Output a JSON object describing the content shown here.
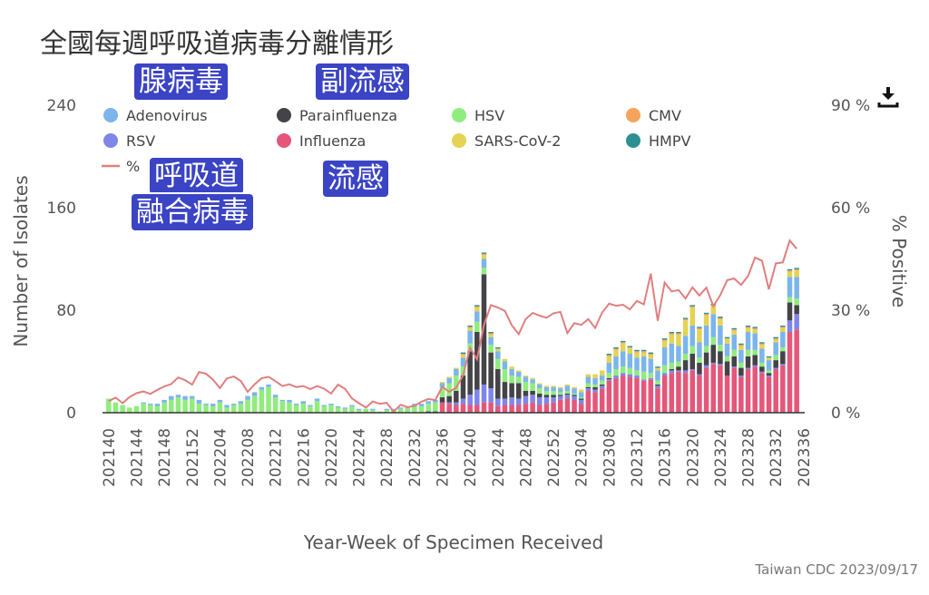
{
  "title": "全國每週呼吸道病毒分離情形",
  "credit": "Taiwan CDC 2023/09/17",
  "download_icon": "download-icon",
  "annotations": [
    "腺病毒",
    "副流感",
    "呼吸道",
    "融合病毒",
    "流感"
  ],
  "chart_data": {
    "type": "bar",
    "stacked": true,
    "xlabel": "Year-Week of Specimen Received",
    "ylabel": "Number of Isolates",
    "y2label": "% Positive",
    "ylim": [
      0,
      240
    ],
    "y2lim": [
      0,
      90
    ],
    "yticks": [
      "0",
      "80",
      "160",
      "240"
    ],
    "y2ticks": [
      "0 %",
      "30 %",
      "60 %",
      "90 %"
    ],
    "xticks": [
      "202140",
      "202144",
      "202148",
      "202152",
      "202204",
      "202208",
      "202212",
      "202216",
      "202220",
      "202224",
      "202228",
      "202232",
      "202236",
      "202240",
      "202244",
      "202248",
      "202252",
      "202304",
      "202308",
      "202312",
      "202316",
      "202320",
      "202324",
      "202328",
      "202332",
      "202336"
    ],
    "legend": [
      {
        "name": "Adenovirus",
        "color": "#7cb5ec"
      },
      {
        "name": "Parainfluenza",
        "color": "#434348"
      },
      {
        "name": "HSV",
        "color": "#90ed7d"
      },
      {
        "name": "CMV",
        "color": "#f7a35c"
      },
      {
        "name": "RSV",
        "color": "#8085e9"
      },
      {
        "name": "Influenza",
        "color": "#e4577a"
      },
      {
        "name": "SARS-CoV-2",
        "color": "#e4d354"
      },
      {
        "name": "HMPV",
        "color": "#2b908f"
      },
      {
        "name": "%",
        "color": "#e07f7f"
      }
    ],
    "weeks": [
      "202140",
      "202141",
      "202142",
      "202143",
      "202144",
      "202145",
      "202146",
      "202147",
      "202148",
      "202149",
      "202150",
      "202151",
      "202152",
      "202201",
      "202202",
      "202203",
      "202204",
      "202205",
      "202206",
      "202207",
      "202208",
      "202209",
      "202210",
      "202211",
      "202212",
      "202213",
      "202214",
      "202215",
      "202216",
      "202217",
      "202218",
      "202219",
      "202220",
      "202221",
      "202222",
      "202223",
      "202224",
      "202225",
      "202226",
      "202227",
      "202228",
      "202229",
      "202230",
      "202231",
      "202232",
      "202233",
      "202234",
      "202235",
      "202236",
      "202237",
      "202238",
      "202239",
      "202240",
      "202241",
      "202242",
      "202243",
      "202244",
      "202245",
      "202246",
      "202247",
      "202248",
      "202249",
      "202250",
      "202251",
      "202252",
      "202301",
      "202302",
      "202303",
      "202304",
      "202305",
      "202306",
      "202307",
      "202308",
      "202309",
      "202310",
      "202311",
      "202312",
      "202313",
      "202314",
      "202315",
      "202316",
      "202317",
      "202318",
      "202319",
      "202320",
      "202321",
      "202322",
      "202323",
      "202324",
      "202325",
      "202326",
      "202327",
      "202328",
      "202329",
      "202330",
      "202331",
      "202332",
      "202333",
      "202334",
      "202335"
    ],
    "series": [
      {
        "name": "Influenza",
        "values": [
          0,
          0,
          0,
          0,
          0,
          0,
          0,
          0,
          0,
          0,
          0,
          0,
          0,
          0,
          0,
          0,
          0,
          0,
          0,
          0,
          0,
          0,
          0,
          0,
          0,
          0,
          0,
          0,
          0,
          0,
          0,
          0,
          0,
          0,
          0,
          0,
          0,
          0,
          0,
          0,
          0,
          0,
          0,
          0,
          0,
          0,
          0,
          0,
          8,
          7,
          6,
          7,
          6,
          6,
          8,
          8,
          5,
          6,
          6,
          6,
          7,
          8,
          6,
          7,
          8,
          10,
          11,
          10,
          7,
          17,
          16,
          19,
          25,
          27,
          29,
          28,
          27,
          25,
          26,
          19,
          29,
          31,
          32,
          31,
          33,
          29,
          35,
          38,
          37,
          29,
          35,
          28,
          34,
          36,
          31,
          28,
          34,
          37,
          63,
          65
        ]
      },
      {
        "name": "RSV",
        "values": [
          0,
          0,
          0,
          0,
          0,
          0,
          0,
          0,
          0,
          0,
          0,
          0,
          0,
          0,
          0,
          0,
          0,
          0,
          0,
          0,
          0,
          0,
          0,
          0,
          0,
          0,
          0,
          0,
          0,
          0,
          0,
          0,
          0,
          0,
          0,
          0,
          0,
          0,
          0,
          0,
          0,
          0,
          0,
          0,
          0,
          0,
          0,
          0,
          0,
          1,
          2,
          4,
          8,
          12,
          14,
          11,
          6,
          5,
          6,
          5,
          6,
          6,
          6,
          5,
          4,
          3,
          3,
          3,
          3,
          2,
          2,
          2,
          1,
          2,
          2,
          2,
          2,
          1,
          1,
          2,
          2,
          2,
          1,
          2,
          1,
          1,
          2,
          1,
          1,
          0,
          1,
          1,
          1,
          1,
          1,
          1,
          1,
          1,
          9,
          12
        ]
      },
      {
        "name": "Parainfluenza",
        "values": [
          0,
          0,
          0,
          0,
          0,
          0,
          0,
          0,
          0,
          0,
          0,
          0,
          0,
          0,
          0,
          0,
          0,
          0,
          0,
          0,
          0,
          0,
          0,
          0,
          0,
          0,
          0,
          0,
          0,
          0,
          0,
          0,
          0,
          0,
          0,
          0,
          0,
          0,
          0,
          0,
          0,
          0,
          0,
          0,
          0,
          0,
          1,
          1,
          4,
          5,
          9,
          18,
          34,
          45,
          86,
          28,
          23,
          13,
          11,
          12,
          4,
          3,
          3,
          2,
          2,
          1,
          1,
          1,
          1,
          1,
          2,
          1,
          1,
          0,
          0,
          0,
          0,
          0,
          0,
          1,
          0,
          1,
          3,
          8,
          12,
          9,
          10,
          14,
          10,
          11,
          8,
          6,
          9,
          8,
          4,
          2,
          6,
          10,
          14,
          7
        ]
      },
      {
        "name": "HSV",
        "values": [
          11,
          8,
          6,
          4,
          5,
          7,
          6,
          5,
          8,
          10,
          12,
          10,
          11,
          7,
          6,
          5,
          8,
          4,
          6,
          7,
          10,
          13,
          18,
          20,
          12,
          9,
          8,
          6,
          7,
          5,
          9,
          5,
          6,
          4,
          3,
          5,
          2,
          3,
          2,
          1,
          2,
          2,
          3,
          4,
          5,
          5,
          6,
          7,
          8,
          10,
          12,
          7,
          6,
          8,
          5,
          6,
          8,
          10,
          6,
          5,
          7,
          6,
          4,
          3,
          3,
          2,
          2,
          1,
          1,
          3,
          2,
          3,
          4,
          5,
          5,
          5,
          4,
          6,
          4,
          3,
          6,
          5,
          4,
          5,
          6,
          4,
          5,
          6,
          5,
          4,
          5,
          4,
          5,
          4,
          3,
          2,
          4,
          3,
          4,
          5
        ]
      },
      {
        "name": "Adenovirus",
        "values": [
          0,
          0,
          0,
          0,
          0,
          1,
          1,
          2,
          2,
          3,
          2,
          3,
          2,
          3,
          1,
          2,
          2,
          2,
          1,
          2,
          3,
          3,
          2,
          2,
          2,
          1,
          2,
          1,
          2,
          1,
          2,
          1,
          1,
          1,
          1,
          1,
          1,
          0,
          1,
          0,
          1,
          1,
          1,
          1,
          2,
          2,
          2,
          2,
          3,
          4,
          5,
          7,
          10,
          8,
          7,
          6,
          6,
          6,
          5,
          4,
          4,
          3,
          3,
          3,
          3,
          3,
          4,
          4,
          4,
          5,
          5,
          4,
          8,
          10,
          12,
          11,
          10,
          12,
          11,
          8,
          14,
          15,
          12,
          14,
          16,
          12,
          16,
          18,
          15,
          10,
          12,
          10,
          14,
          13,
          11,
          8,
          10,
          12,
          16,
          17
        ]
      },
      {
        "name": "SARS-CoV-2",
        "values": [
          0,
          0,
          0,
          0,
          0,
          0,
          0,
          0,
          0,
          0,
          0,
          0,
          0,
          0,
          0,
          0,
          0,
          0,
          0,
          0,
          0,
          0,
          0,
          0,
          0,
          0,
          0,
          0,
          0,
          0,
          0,
          0,
          0,
          0,
          0,
          0,
          0,
          0,
          0,
          0,
          0,
          0,
          0,
          0,
          0,
          0,
          0,
          0,
          1,
          1,
          1,
          2,
          2,
          3,
          3,
          2,
          2,
          2,
          2,
          1,
          1,
          1,
          1,
          1,
          1,
          1,
          1,
          1,
          2,
          2,
          3,
          4,
          5,
          5,
          6,
          5,
          4,
          3,
          3,
          2,
          5,
          7,
          9,
          12,
          14,
          10,
          8,
          6,
          5,
          4,
          3,
          3,
          3,
          3,
          3,
          2,
          2,
          3,
          4,
          5
        ]
      },
      {
        "name": "CMV",
        "values": [
          0,
          0,
          0,
          0,
          0,
          0,
          0,
          0,
          0,
          0,
          0,
          0,
          0,
          0,
          0,
          0,
          0,
          0,
          0,
          0,
          0,
          0,
          0,
          0,
          0,
          0,
          0,
          0,
          0,
          0,
          0,
          0,
          0,
          0,
          0,
          0,
          0,
          0,
          0,
          0,
          0,
          0,
          0,
          0,
          0,
          0,
          0,
          0,
          0,
          0,
          0,
          1,
          1,
          1,
          1,
          1,
          0,
          0,
          0,
          0,
          0,
          0,
          0,
          0,
          0,
          0,
          0,
          0,
          0,
          0,
          0,
          0,
          1,
          1,
          1,
          0,
          1,
          1,
          1,
          0,
          1,
          1,
          1,
          1,
          1,
          1,
          1,
          1,
          1,
          0,
          1,
          1,
          1,
          1,
          1,
          0,
          1,
          1,
          1,
          1
        ]
      },
      {
        "name": "HMPV",
        "values": [
          0,
          0,
          0,
          0,
          0,
          0,
          0,
          0,
          0,
          0,
          0,
          0,
          0,
          0,
          0,
          0,
          0,
          0,
          0,
          0,
          0,
          0,
          0,
          0,
          0,
          0,
          0,
          0,
          0,
          0,
          0,
          0,
          0,
          0,
          0,
          0,
          0,
          0,
          0,
          0,
          0,
          0,
          0,
          0,
          0,
          0,
          0,
          0,
          0,
          0,
          0,
          1,
          1,
          1,
          1,
          1,
          1,
          0,
          0,
          0,
          0,
          0,
          0,
          0,
          0,
          0,
          0,
          0,
          0,
          0,
          0,
          0,
          1,
          1,
          1,
          1,
          1,
          1,
          1,
          1,
          1,
          1,
          1,
          1,
          1,
          1,
          1,
          1,
          1,
          1,
          1,
          1,
          1,
          1,
          1,
          1,
          1,
          1,
          1,
          1
        ]
      }
    ],
    "percent_positive": [
      3.4,
      4.4,
      2.8,
      4.6,
      5.7,
      6.2,
      5.5,
      6.7,
      7.7,
      8.4,
      10.3,
      9.5,
      8.2,
      11.9,
      11.4,
      9.7,
      7.2,
      10.0,
      10.6,
      9.3,
      6.1,
      8.3,
      10.1,
      10.5,
      9.2,
      7.8,
      8.3,
      7.5,
      7.8,
      6.9,
      7.8,
      7.0,
      5.6,
      8.2,
      7.0,
      4.2,
      2.8,
      1.5,
      3.3,
      2.6,
      2.9,
      0.3,
      2.3,
      1.6,
      2.0,
      3.2,
      4.0,
      3.7,
      7.6,
      6.1,
      7.3,
      11.0,
      19.0,
      15.6,
      25.7,
      31.5,
      30.8,
      29.8,
      25.6,
      23.0,
      27.4,
      29.2,
      28.4,
      27.8,
      29.1,
      29.5,
      23.3,
      26.2,
      25.7,
      27.4,
      24.8,
      29.3,
      31.9,
      31.3,
      31.6,
      30.2,
      32.7,
      31.7,
      40.7,
      26.9,
      38.1,
      35.5,
      35.9,
      33.4,
      36.7,
      34.3,
      36.6,
      31.2,
      34.4,
      38.8,
      39.3,
      37.4,
      40.0,
      45.4,
      44.5,
      36.1,
      43.7,
      44.0,
      50.4,
      48.0
    ]
  }
}
